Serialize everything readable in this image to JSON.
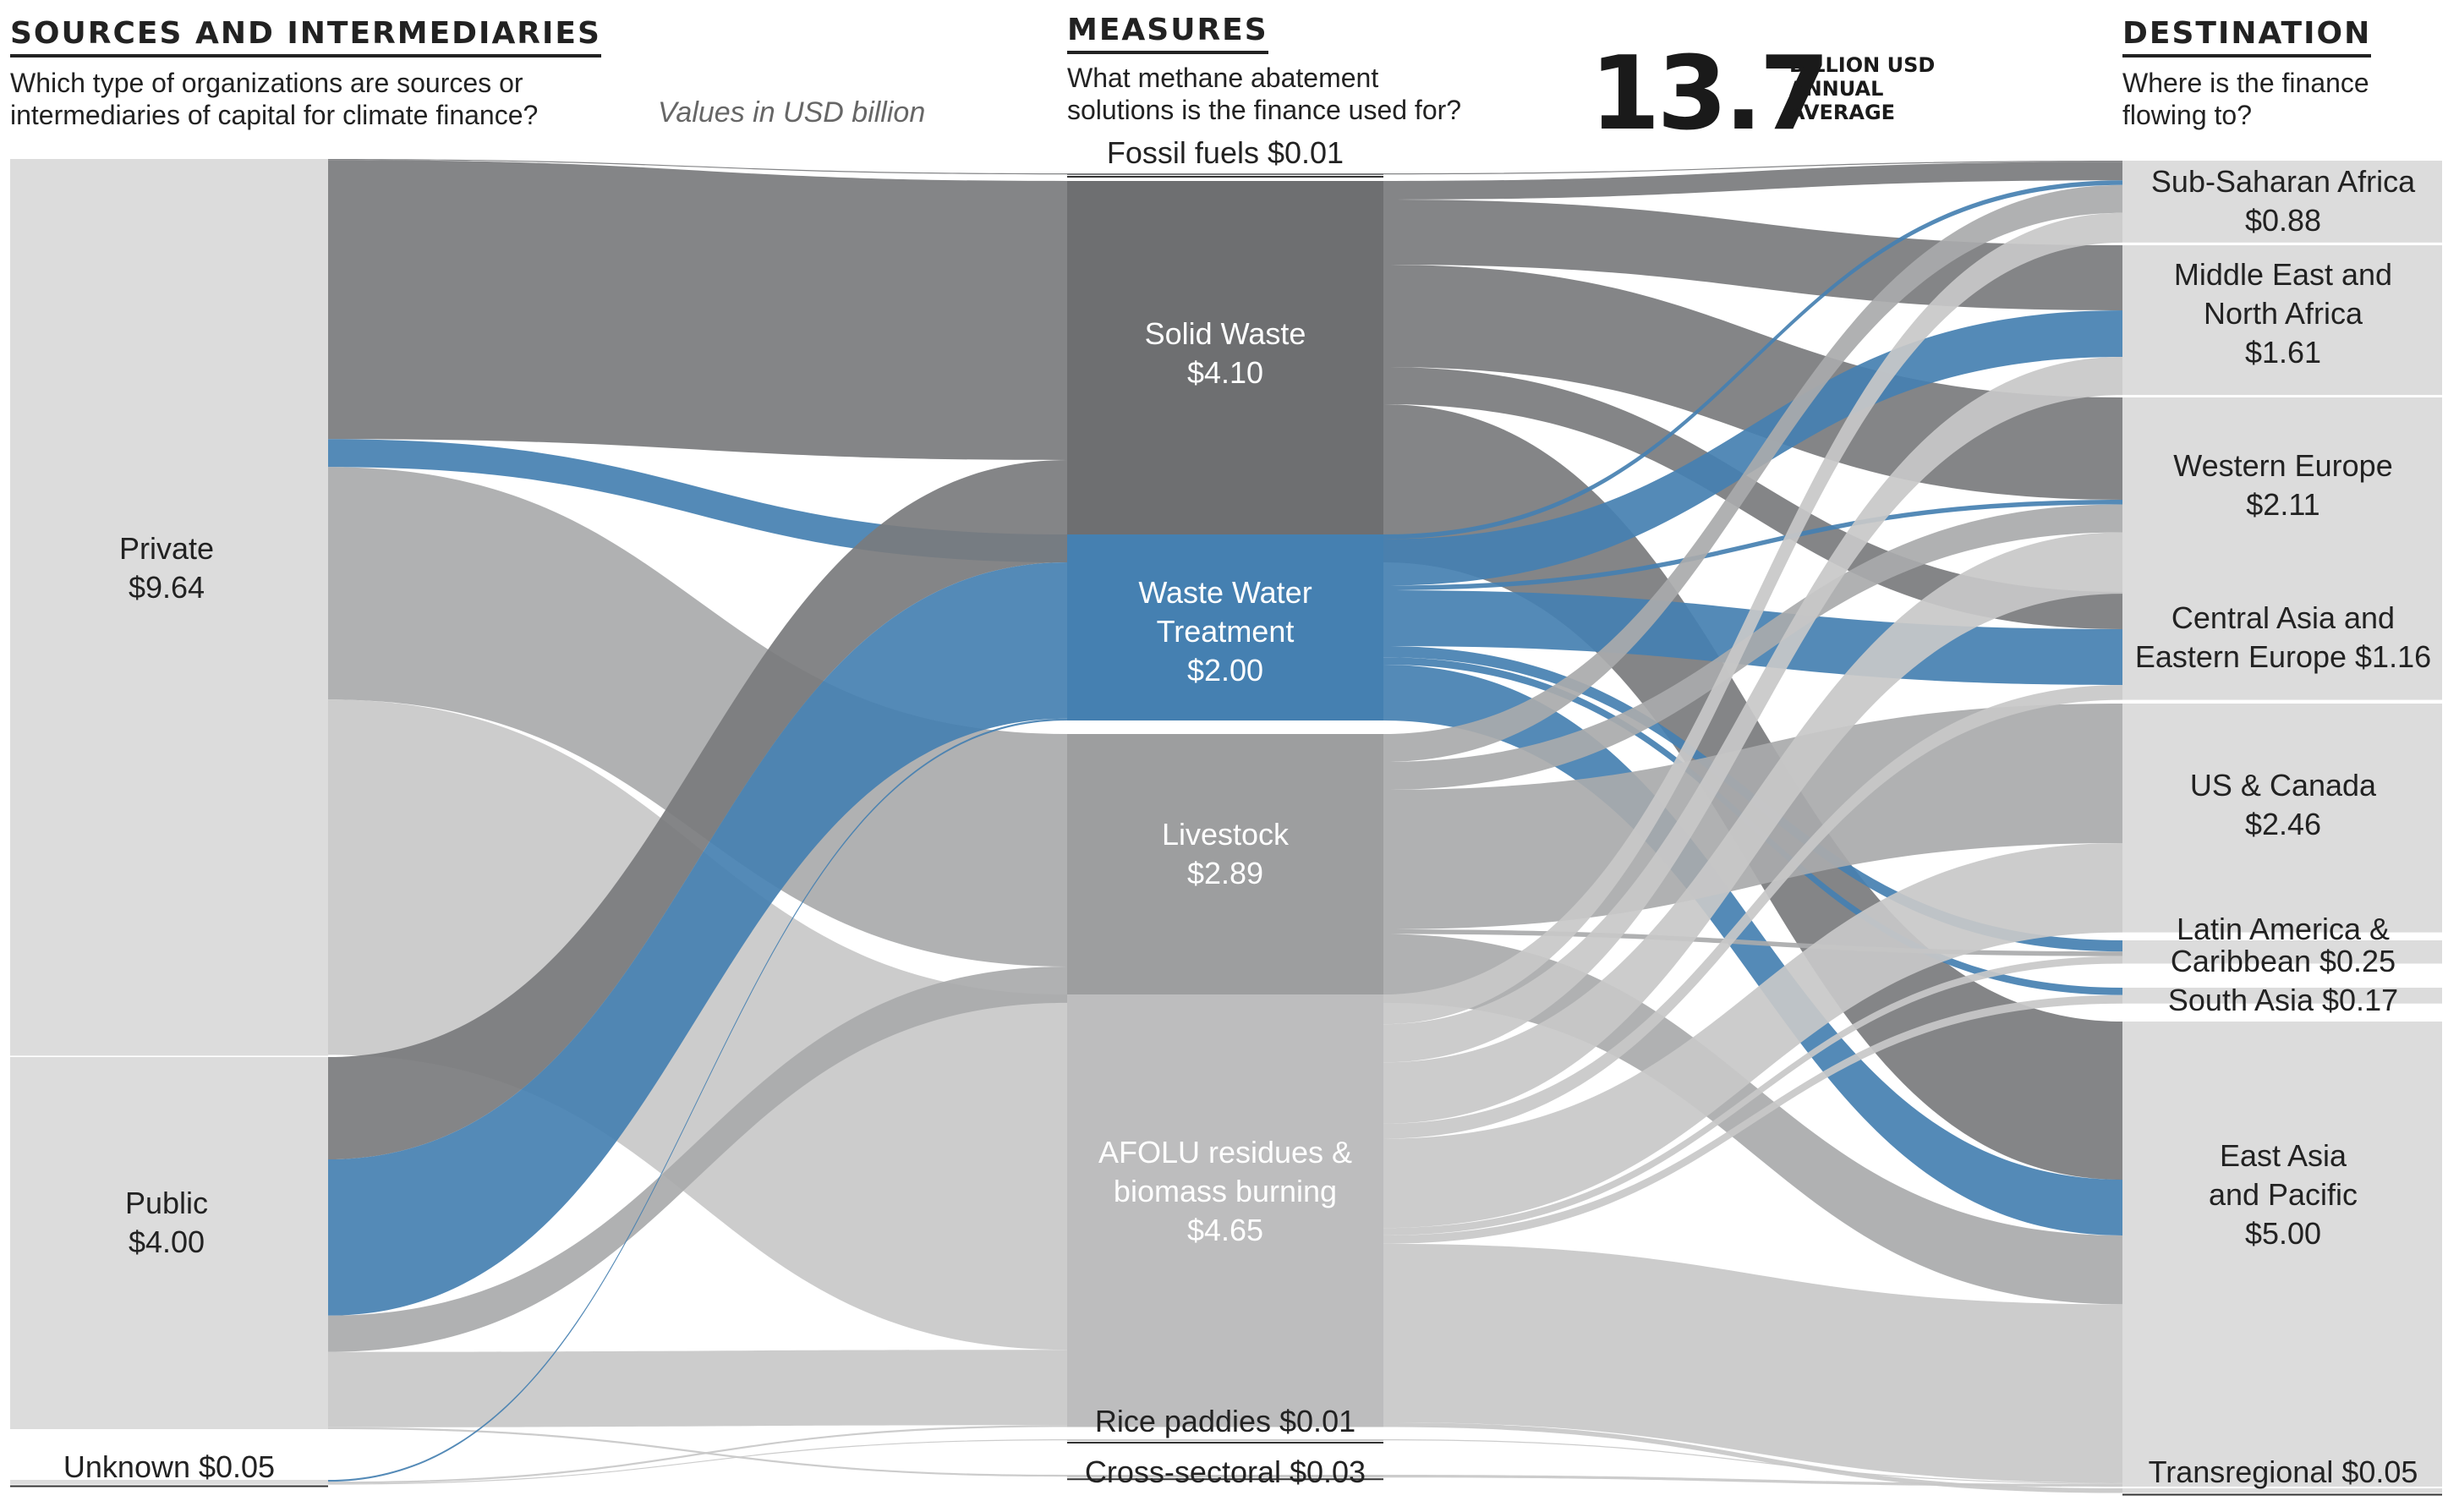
{
  "headings": {
    "sources": {
      "title": "SOURCES AND INTERMEDIARIES",
      "subtitle": "Which type of organizations are sources or\nintermediaries of capital for climate finance?"
    },
    "measures": {
      "title": "MEASURES",
      "subtitle": "What methane abatement\nsolutions is the finance used for?"
    },
    "destination": {
      "title": "DESTINATION",
      "subtitle": "Where is the finance\nflowing to?"
    }
  },
  "values_note": "Values in USD billion",
  "total": {
    "value": "13.7",
    "unit_line1": "BILLION USD",
    "unit_line2": "ANNUAL",
    "unit_line3": "AVERAGE"
  },
  "colors": {
    "highlight": "#4580b1",
    "dark": "#7a7b7d",
    "mid": "#a9aaab",
    "light": "#c8c8c8",
    "node": "#dcdcdc"
  },
  "chart_data": {
    "type": "sankey",
    "nodes": {
      "sources": [
        {
          "id": "private",
          "label": "Private\n$9.64",
          "value": 9.64
        },
        {
          "id": "public",
          "label": "Public\n$4.00",
          "value": 4.0
        },
        {
          "id": "unknown",
          "label": "Unknown $0.05",
          "value": 0.05
        }
      ],
      "measures": [
        {
          "id": "fossil",
          "label": "Fossil fuels $0.01",
          "value": 0.01
        },
        {
          "id": "solid",
          "label": "Solid Waste\n$4.10",
          "value": 4.1
        },
        {
          "id": "wastewater",
          "label": "Waste Water\nTreatment\n$2.00",
          "value": 2.0
        },
        {
          "id": "livestock",
          "label": "Livestock\n$2.89",
          "value": 2.89
        },
        {
          "id": "afolu",
          "label": "AFOLU residues &\nbiomass burning\n$4.65",
          "value": 4.65
        },
        {
          "id": "rice",
          "label": "Rice paddies $0.01",
          "value": 0.01
        },
        {
          "id": "cross",
          "label": "Cross-sectoral $0.03",
          "value": 0.03
        }
      ],
      "destinations": [
        {
          "id": "ssa",
          "label": "Sub-Saharan Africa\n$0.88",
          "value": 0.88
        },
        {
          "id": "mena",
          "label": "Middle East and\nNorth Africa\n$1.61",
          "value": 1.61
        },
        {
          "id": "weu",
          "label": "Western Europe\n$2.11",
          "value": 2.11
        },
        {
          "id": "caee",
          "label": "Central Asia and\nEastern Europe $1.16",
          "value": 1.16
        },
        {
          "id": "usca",
          "label": "US & Canada\n$2.46",
          "value": 2.46
        },
        {
          "id": "latam",
          "label": "Latin America &\nCaribbean $0.25",
          "value": 0.25
        },
        {
          "id": "sasia",
          "label": "South Asia $0.17",
          "value": 0.17
        },
        {
          "id": "eap",
          "label": "East Asia\nand Pacific\n$5.00",
          "value": 5.0
        },
        {
          "id": "trans",
          "label": "Transregional $0.05",
          "value": 0.05
        }
      ]
    },
    "flows_left": [
      {
        "from": "private",
        "to": "fossil",
        "value": 0.01
      },
      {
        "from": "private",
        "to": "solid",
        "value": 3.0
      },
      {
        "from": "private",
        "to": "wastewater",
        "value": 0.3
      },
      {
        "from": "private",
        "to": "livestock",
        "value": 2.5
      },
      {
        "from": "private",
        "to": "afolu",
        "value": 3.82
      },
      {
        "from": "public",
        "to": "solid",
        "value": 1.1
      },
      {
        "from": "public",
        "to": "wastewater",
        "value": 1.68
      },
      {
        "from": "public",
        "to": "livestock",
        "value": 0.39
      },
      {
        "from": "public",
        "to": "afolu",
        "value": 0.81
      },
      {
        "from": "public",
        "to": "cross",
        "value": 0.02
      },
      {
        "from": "unknown",
        "to": "wastewater",
        "value": 0.02
      },
      {
        "from": "unknown",
        "to": "afolu",
        "value": 0.02
      },
      {
        "from": "unknown",
        "to": "rice",
        "value": 0.01
      }
    ],
    "flows_right": [
      {
        "from": "fossil",
        "to": "ssa",
        "value": 0.01
      },
      {
        "from": "solid",
        "to": "ssa",
        "value": 0.2
      },
      {
        "from": "solid",
        "to": "mena",
        "value": 0.7
      },
      {
        "from": "solid",
        "to": "weu",
        "value": 1.1
      },
      {
        "from": "solid",
        "to": "caee",
        "value": 0.4
      },
      {
        "from": "solid",
        "to": "eap",
        "value": 1.7
      },
      {
        "from": "wastewater",
        "to": "ssa",
        "value": 0.05
      },
      {
        "from": "wastewater",
        "to": "mena",
        "value": 0.5
      },
      {
        "from": "wastewater",
        "to": "weu",
        "value": 0.05
      },
      {
        "from": "wastewater",
        "to": "caee",
        "value": 0.6
      },
      {
        "from": "wastewater",
        "to": "latam",
        "value": 0.12
      },
      {
        "from": "wastewater",
        "to": "sasia",
        "value": 0.08
      },
      {
        "from": "wastewater",
        "to": "eap",
        "value": 0.6
      },
      {
        "from": "livestock",
        "to": "ssa",
        "value": 0.3
      },
      {
        "from": "livestock",
        "to": "weu",
        "value": 0.3
      },
      {
        "from": "livestock",
        "to": "usca",
        "value": 1.5
      },
      {
        "from": "livestock",
        "to": "latam",
        "value": 0.05
      },
      {
        "from": "livestock",
        "to": "eap",
        "value": 0.74
      },
      {
        "from": "afolu",
        "to": "ssa",
        "value": 0.32
      },
      {
        "from": "afolu",
        "to": "mena",
        "value": 0.41
      },
      {
        "from": "afolu",
        "to": "weu",
        "value": 0.66
      },
      {
        "from": "afolu",
        "to": "caee",
        "value": 0.16
      },
      {
        "from": "afolu",
        "to": "usca",
        "value": 0.96
      },
      {
        "from": "afolu",
        "to": "latam",
        "value": 0.08
      },
      {
        "from": "afolu",
        "to": "sasia",
        "value": 0.09
      },
      {
        "from": "afolu",
        "to": "eap",
        "value": 1.92
      },
      {
        "from": "afolu",
        "to": "trans",
        "value": 0.05
      },
      {
        "from": "rice",
        "to": "eap",
        "value": 0.01
      },
      {
        "from": "cross",
        "to": "eap",
        "value": 0.03
      }
    ]
  }
}
